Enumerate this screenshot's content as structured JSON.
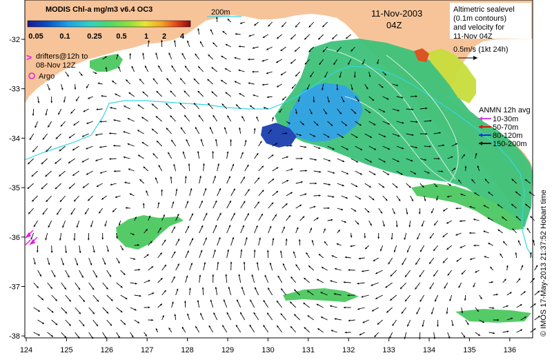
{
  "map": {
    "colorbar": {
      "title": "MODIS Chl-a mg/m3 v6.4 OC3",
      "ticks": [
        "0.05",
        "0.1",
        "0.25",
        "0.5",
        "1",
        "2",
        "4"
      ],
      "colors": [
        "#1a1a8c",
        "#0a4fc8",
        "#1ea0e6",
        "#2fd0c8",
        "#4cd96a",
        "#8be03c",
        "#e6e633",
        "#f5a623",
        "#e0401a",
        "#8b0a14"
      ]
    },
    "isobath_label": "200m",
    "date": "11-Nov-2003",
    "time": "04Z",
    "altimetry_note": [
      "Altimetric sealevel",
      "(0.1m contours)",
      "and velocity for",
      "11-Nov 04Z",
      "0.5m/s (1kt 24h)"
    ],
    "drifters_note": [
      "drifters@12h to",
      "08-Nov 12Z"
    ],
    "drifters_marker": ">",
    "argo_label": "Argo",
    "anmn": {
      "title": "ANMN 12h avg",
      "items": [
        {
          "label": "10-30m",
          "color": "#e040e0"
        },
        {
          "label": "50-70m",
          "color": "#e01010"
        },
        {
          "label": "80-120m",
          "color": "#1030e0"
        },
        {
          "label": "150-200m",
          "color": "#101010"
        }
      ]
    },
    "credit": "© IMOS 17-May-2013 21:37:52 Hobart time",
    "x_ticks": [
      "124",
      "125",
      "126",
      "127",
      "128",
      "129",
      "130",
      "131",
      "132",
      "133",
      "134",
      "135",
      "136"
    ],
    "y_ticks": [
      "-32",
      "-33",
      "-34",
      "-35",
      "-36",
      "-37",
      "-38"
    ],
    "colors": {
      "land": "#f7c49a",
      "isobath": "#33d6e6",
      "arrow": "#000000"
    }
  }
}
